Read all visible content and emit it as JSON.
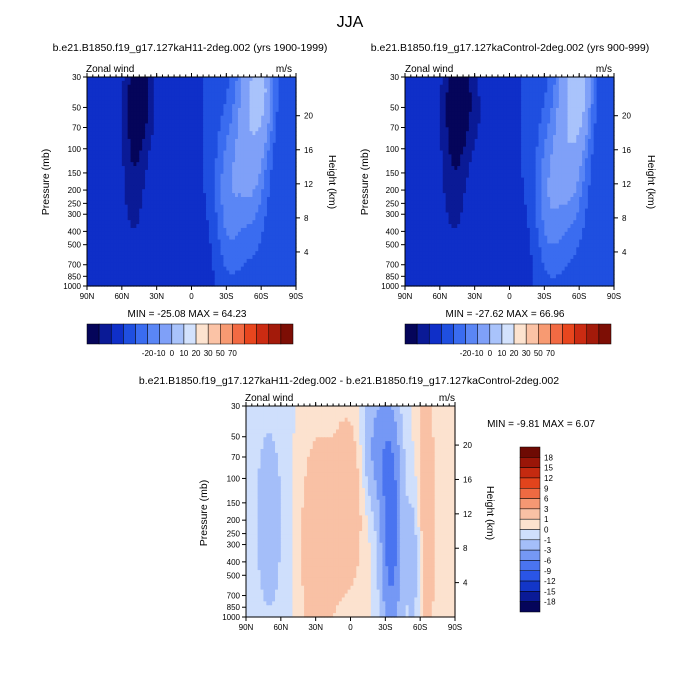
{
  "chart_data": {
    "type": "heatmap",
    "title": "JJA",
    "palettes": {
      "full": [
        "#05055a",
        "#0a1a96",
        "#0f2fc8",
        "#1f4fe0",
        "#3a6cf0",
        "#5a86f5",
        "#7fa0f8",
        "#a9c3fb",
        "#d3e2fd",
        "#fde3cf",
        "#fbc3a6",
        "#f79a72",
        "#f26a43",
        "#e8461e",
        "#cb2b12",
        "#a31a0a",
        "#7d0e05"
      ],
      "diff": [
        "#05055a",
        "#0a1a96",
        "#1336c8",
        "#2a55e6",
        "#4a74f0",
        "#7598f5",
        "#a4bef9",
        "#cfdffc",
        "#fce2cf",
        "#f9c1a5",
        "#f59873",
        "#ef6a42",
        "#e2441c",
        "#c42a10",
        "#9a1608",
        "#6e0a03"
      ]
    },
    "panels": [
      {
        "id": "hist",
        "subtitle": "b.e21.B1850.f19_g17.127kaH11-2deg.002 (yrs 1900-1999)",
        "left_label": "Zonal wind",
        "right_label": "m/s",
        "ylabel": "Pressure (mb)",
        "ylabel_right": "Height (km)",
        "minmax": "MIN = -25.08  MAX =  64.23",
        "levels": [
          -20,
          -10,
          0,
          10,
          20,
          30,
          50,
          70
        ],
        "colorbar_labels": [
          "-20",
          "-10",
          "0",
          "10",
          "20",
          "30",
          "50",
          "70"
        ],
        "centers": [
          {
            "lat": 45,
            "p": 40,
            "amp": -25,
            "slat": 9,
            "sp": 0.7
          },
          {
            "lat": 50,
            "p": 150,
            "amp": -15,
            "slat": 8,
            "sp": 1.0
          },
          {
            "lat": 15,
            "p": 70,
            "amp": -8,
            "slat": 10,
            "sp": 0.6
          },
          {
            "lat": -32,
            "p": 220,
            "amp": 25,
            "slat": 9,
            "sp": 1.0
          },
          {
            "lat": -52,
            "p": 60,
            "amp": 45,
            "slat": 10,
            "sp": 1.3
          },
          {
            "lat": -62,
            "p": 35,
            "amp": 30,
            "slat": 7,
            "sp": 0.6
          },
          {
            "lat": 0,
            "p": 700,
            "amp": -6,
            "slat": 20,
            "sp": 0.8
          }
        ]
      },
      {
        "id": "ctrl",
        "subtitle": "b.e21.B1850.f19_g17.127kaControl-2deg.002 (yrs 900-999)",
        "left_label": "Zonal wind",
        "right_label": "m/s",
        "ylabel": "Pressure (mb)",
        "ylabel_right": "Height (km)",
        "minmax": "MIN = -27.62  MAX =  66.96",
        "levels": [
          -20,
          -10,
          0,
          10,
          20,
          30,
          50,
          70
        ],
        "colorbar_labels": [
          "-20",
          "-10",
          "0",
          "10",
          "20",
          "30",
          "50",
          "70"
        ],
        "centers": [
          {
            "lat": 43,
            "p": 40,
            "amp": -27,
            "slat": 10,
            "sp": 0.7
          },
          {
            "lat": 48,
            "p": 150,
            "amp": -15,
            "slat": 9,
            "sp": 1.0
          },
          {
            "lat": 15,
            "p": 70,
            "amp": -8,
            "slat": 10,
            "sp": 0.6
          },
          {
            "lat": -34,
            "p": 220,
            "amp": 26,
            "slat": 9,
            "sp": 1.0
          },
          {
            "lat": -53,
            "p": 60,
            "amp": 47,
            "slat": 10,
            "sp": 1.3
          },
          {
            "lat": -62,
            "p": 35,
            "amp": 31,
            "slat": 7,
            "sp": 0.6
          },
          {
            "lat": 0,
            "p": 700,
            "amp": -6,
            "slat": 20,
            "sp": 0.8
          }
        ]
      },
      {
        "id": "diff",
        "subtitle": "b.e21.B1850.f19_g17.127kaH11-2deg.002 - b.e21.B1850.f19_g17.127kaControl-2deg.002",
        "left_label": "Zonal wind",
        "right_label": "m/s",
        "ylabel": "Pressure (mb)",
        "ylabel_right": "Height (km)",
        "minmax": "MIN = -9.81  MAX =  6.07",
        "levels": [
          -18,
          -15,
          -12,
          -9,
          -6,
          -3,
          -1,
          0,
          1,
          3,
          6,
          9,
          12,
          15,
          18
        ],
        "colorbar_labels": [
          "18",
          "15",
          "12",
          "9",
          "6",
          "3",
          "1",
          "0",
          "-1",
          "-3",
          "-6",
          "-9",
          "-12",
          "-15",
          "-18"
        ],
        "centers": [
          {
            "lat": 28,
            "p": 300,
            "amp": 2.2,
            "slat": 12,
            "sp": 1.4
          },
          {
            "lat": 2,
            "p": 150,
            "amp": 2.5,
            "slat": 9,
            "sp": 1.0
          },
          {
            "lat": -35,
            "p": 250,
            "amp": -8,
            "slat": 6,
            "sp": 1.2
          },
          {
            "lat": -25,
            "p": 60,
            "amp": -4,
            "slat": 9,
            "sp": 0.7
          },
          {
            "lat": -65,
            "p": 200,
            "amp": 2.2,
            "slat": 6,
            "sp": 2.0
          },
          {
            "lat": -55,
            "p": 400,
            "amp": -2,
            "slat": 5,
            "sp": 1.0
          },
          {
            "lat": 70,
            "p": 200,
            "amp": -1.5,
            "slat": 12,
            "sp": 1.6
          }
        ]
      }
    ],
    "x_axis": {
      "range": [
        90,
        -90
      ],
      "ticks": [
        90,
        60,
        30,
        0,
        -30,
        -60,
        -90
      ],
      "tick_labels": [
        "90N",
        "60N",
        "30N",
        "0",
        "30S",
        "60S",
        "90S"
      ]
    },
    "y_axis": {
      "scale": "log",
      "range": [
        1000,
        30
      ],
      "ticks": [
        30,
        50,
        70,
        100,
        150,
        200,
        250,
        300,
        400,
        500,
        700,
        850,
        1000
      ],
      "tick_labels": [
        "30",
        "50",
        "70",
        "100",
        "150",
        "200",
        "250",
        "300",
        "400",
        "500",
        "700",
        "850",
        "1000"
      ]
    },
    "y_axis_right": {
      "ticks": [
        20,
        16,
        12,
        8,
        4
      ],
      "tick_labels": [
        "20",
        "16",
        "12",
        "8",
        "4"
      ]
    }
  }
}
